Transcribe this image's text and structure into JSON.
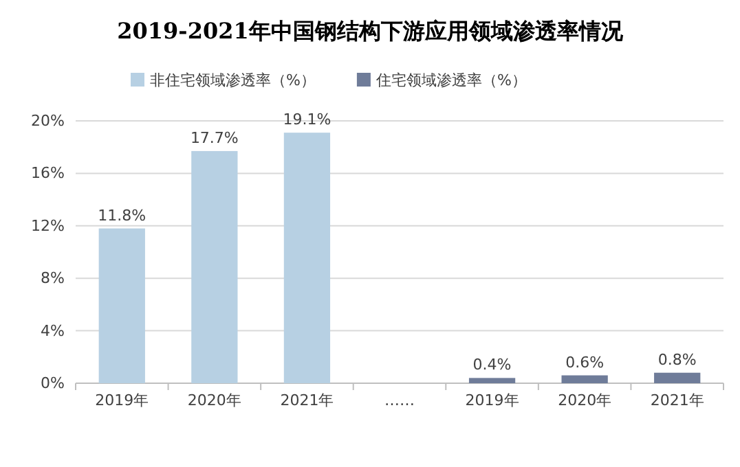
{
  "chart_data": {
    "type": "bar",
    "title": "2019-2021年中国钢结构下游应用领域渗透率情况",
    "categories": [
      "2019年",
      "2020年",
      "2021年",
      "……",
      "2019年",
      "2020年",
      "2021年"
    ],
    "series": [
      {
        "name": "非住宅领域渗透率（%）",
        "color": "#b7d0e3",
        "values": [
          11.8,
          17.7,
          19.1,
          null,
          null,
          null,
          null
        ],
        "value_labels": [
          "11.8%",
          "17.7%",
          "19.1%",
          null,
          null,
          null,
          null
        ]
      },
      {
        "name": "住宅领域渗透率（%）",
        "color": "#6f7c99",
        "values": [
          null,
          null,
          null,
          null,
          0.4,
          0.6,
          0.8
        ],
        "value_labels": [
          null,
          null,
          null,
          null,
          "0.4%",
          "0.6%",
          "0.8%"
        ]
      }
    ],
    "ylim": [
      0,
      20
    ],
    "yticks": [
      {
        "value": 0,
        "label": "0%"
      },
      {
        "value": 4,
        "label": "4%"
      },
      {
        "value": 8,
        "label": "8%"
      },
      {
        "value": 12,
        "label": "12%"
      },
      {
        "value": 16,
        "label": "16%"
      },
      {
        "value": 20,
        "label": "20%"
      }
    ],
    "grid": "y",
    "legend": "top"
  }
}
